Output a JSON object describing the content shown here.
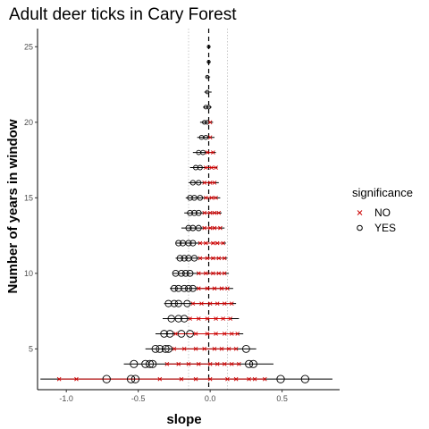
{
  "chart_data": {
    "type": "scatter",
    "title": "Adult deer ticks in Cary Forest",
    "xlabel": "slope",
    "ylabel": "Number of years in window",
    "xlim": [
      -1.2,
      0.9
    ],
    "ylim": [
      2.3,
      26.2
    ],
    "x_ticks": [
      -1.0,
      -0.5,
      0.0,
      0.5
    ],
    "x_tick_labels": [
      "-1.0",
      "-0.5",
      "0.0",
      "0.5"
    ],
    "y_ticks": [
      5,
      10,
      15,
      20,
      25
    ],
    "y_tick_labels": [
      "5",
      "10",
      "15",
      "20",
      "25"
    ],
    "reference_lines": {
      "dashed_x": -0.01,
      "dotted_x": [
        -0.15,
        0.12
      ]
    },
    "legend": {
      "title": "significance",
      "position": "right",
      "entries": [
        {
          "label": "NO",
          "shape": "x",
          "color": "#cc0000"
        },
        {
          "label": "YES",
          "shape": "circle",
          "color": "#000000"
        }
      ]
    },
    "windows": [
      {
        "years": 3,
        "ranges": [
          [
            -1.18,
            0.85
          ]
        ],
        "yes": [
          -0.72,
          -0.55,
          -0.52,
          0.49,
          0.66
        ],
        "no": [
          -1.05,
          -0.93,
          -0.35,
          -0.2,
          -0.1,
          0.0,
          0.12,
          0.18,
          0.27,
          0.31,
          0.38
        ]
      },
      {
        "years": 4,
        "ranges": [
          [
            -0.6,
            0.44
          ]
        ],
        "yes": [
          -0.53,
          -0.45,
          -0.42,
          -0.4,
          0.27,
          0.3
        ],
        "no": [
          -0.3,
          -0.22,
          -0.15,
          -0.08,
          0.0,
          0.05,
          0.1,
          0.15,
          0.2
        ]
      },
      {
        "years": 5,
        "ranges": [
          [
            -0.45,
            0.32
          ]
        ],
        "yes": [
          -0.38,
          -0.35,
          -0.31,
          -0.29,
          0.25
        ],
        "no": [
          -0.25,
          -0.18,
          -0.1,
          -0.04,
          0.03,
          0.08,
          0.13,
          0.18
        ]
      },
      {
        "years": 6,
        "ranges": [
          [
            -0.38,
            0.23
          ]
        ],
        "yes": [
          -0.32,
          -0.28,
          -0.2,
          -0.14
        ],
        "no": [
          -0.24,
          -0.1,
          -0.02,
          0.04,
          0.1,
          0.15,
          0.19
        ]
      },
      {
        "years": 7,
        "ranges": [
          [
            -0.33,
            0.2
          ]
        ],
        "yes": [
          -0.27,
          -0.22,
          -0.18
        ],
        "no": [
          -0.14,
          -0.08,
          -0.02,
          0.04,
          0.09,
          0.14
        ]
      },
      {
        "years": 8,
        "ranges": [
          [
            -0.32,
            0.18
          ]
        ],
        "yes": [
          -0.29,
          -0.25,
          -0.22,
          -0.16
        ],
        "no": [
          -0.12,
          -0.06,
          0.0,
          0.05,
          0.1,
          0.15
        ]
      },
      {
        "years": 9,
        "ranges": [
          [
            -0.28,
            0.16
          ]
        ],
        "yes": [
          -0.25,
          -0.22,
          -0.18,
          -0.15,
          -0.12
        ],
        "no": [
          -0.08,
          -0.02,
          0.03,
          0.08,
          0.12
        ]
      },
      {
        "years": 10,
        "ranges": [
          [
            -0.26,
            0.13
          ]
        ],
        "yes": [
          -0.24,
          -0.2,
          -0.17,
          -0.14
        ],
        "no": [
          -0.08,
          -0.03,
          0.02,
          0.06,
          0.1
        ]
      },
      {
        "years": 11,
        "ranges": [
          [
            -0.24,
            0.12
          ]
        ],
        "yes": [
          -0.21,
          -0.18,
          -0.15,
          -0.11
        ],
        "no": [
          -0.07,
          -0.02,
          0.02,
          0.06,
          0.1
        ]
      },
      {
        "years": 12,
        "ranges": [
          [
            -0.24,
            0.11
          ]
        ],
        "yes": [
          -0.22,
          -0.19,
          -0.15,
          -0.12
        ],
        "no": [
          -0.07,
          -0.03,
          0.02,
          0.05,
          0.09
        ]
      },
      {
        "years": 13,
        "ranges": [
          [
            -0.2,
            0.1
          ]
        ],
        "yes": [
          -0.15,
          -0.12,
          -0.08
        ],
        "no": [
          -0.04,
          0.0,
          0.03,
          0.07
        ]
      },
      {
        "years": 14,
        "ranges": [
          [
            -0.18,
            0.08
          ]
        ],
        "yes": [
          -0.14,
          -0.11,
          -0.08
        ],
        "no": [
          -0.04,
          0.0,
          0.03,
          0.06
        ]
      },
      {
        "years": 15,
        "ranges": [
          [
            -0.17,
            0.07
          ]
        ],
        "yes": [
          -0.14,
          -0.11,
          -0.07
        ],
        "no": [
          -0.03,
          0.01,
          0.04
        ]
      },
      {
        "years": 16,
        "ranges": [
          [
            -0.15,
            0.06
          ]
        ],
        "yes": [
          -0.12,
          -0.08
        ],
        "no": [
          -0.04,
          0.0,
          0.03
        ]
      },
      {
        "years": 17,
        "ranges": [
          [
            -0.14,
            0.05
          ]
        ],
        "yes": [
          -0.1,
          -0.07
        ],
        "no": [
          -0.03,
          0.01,
          0.04
        ]
      },
      {
        "years": 18,
        "ranges": [
          [
            -0.12,
            0.04
          ]
        ],
        "yes": [
          -0.08,
          -0.05
        ],
        "no": [
          -0.02,
          0.02
        ]
      },
      {
        "years": 19,
        "ranges": [
          [
            -0.09,
            0.03
          ]
        ],
        "yes": [
          -0.06,
          -0.03
        ],
        "no": [
          0.0
        ]
      },
      {
        "years": 20,
        "ranges": [
          [
            -0.07,
            0.02
          ]
        ],
        "yes": [
          -0.04,
          -0.02
        ],
        "no": [
          0.0
        ]
      },
      {
        "years": 21,
        "ranges": [
          [
            -0.05,
            0.01
          ]
        ],
        "yes": [
          -0.03,
          -0.01
        ],
        "no": []
      },
      {
        "years": 22,
        "ranges": [
          [
            -0.04,
            0.01
          ]
        ],
        "yes": [
          -0.02
        ],
        "no": []
      },
      {
        "years": 23,
        "ranges": [
          [
            -0.03,
            0.0
          ]
        ],
        "yes": [
          -0.02
        ],
        "no": []
      },
      {
        "years": 24,
        "ranges": [
          [
            -0.02,
            0.0
          ]
        ],
        "yes": [
          -0.01
        ],
        "no": []
      },
      {
        "years": 25,
        "ranges": [
          [
            -0.015,
            0.0
          ]
        ],
        "yes": [
          -0.01
        ],
        "no": []
      }
    ]
  }
}
